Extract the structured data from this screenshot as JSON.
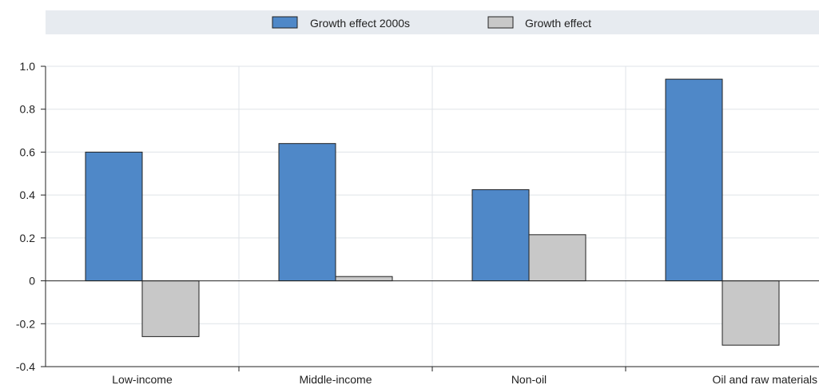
{
  "chart_data": {
    "type": "bar",
    "categories": [
      "Low-income",
      "Middle-income",
      "Non-oil",
      "Oil and raw materials"
    ],
    "series": [
      {
        "name": "Growth effect 2000s",
        "values": [
          0.6,
          0.64,
          0.425,
          0.94
        ],
        "color": "#4f88c8"
      },
      {
        "name": "Growth effect",
        "values": [
          -0.26,
          0.02,
          0.215,
          -0.3
        ],
        "color": "#c8c8c8"
      }
    ],
    "yticks": [
      "1.0",
      "0.8",
      "0.6",
      "0.4",
      "0.2",
      "0",
      "-0.2",
      "-0.4"
    ],
    "ylim": [
      -0.4,
      1.0
    ],
    "grid": true,
    "legend_position": "top",
    "colors": {
      "legend_band": "#e7ebf0",
      "grid": "#dfe3e8",
      "axis": "#222222",
      "bar_stroke": "#222222"
    }
  }
}
